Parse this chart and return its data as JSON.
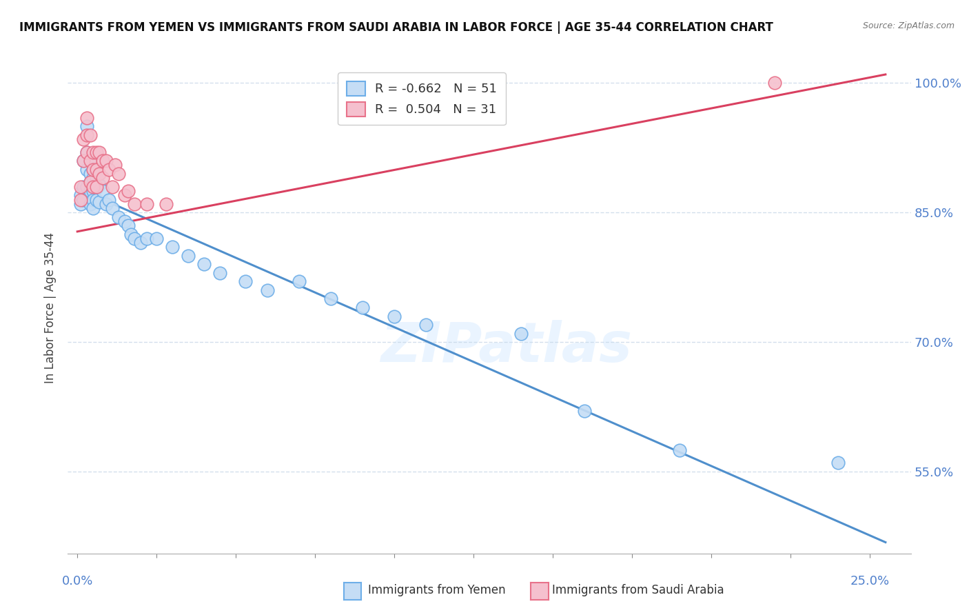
{
  "title": "IMMIGRANTS FROM YEMEN VS IMMIGRANTS FROM SAUDI ARABIA IN LABOR FORCE | AGE 35-44 CORRELATION CHART",
  "source": "Source: ZipAtlas.com",
  "ylabel": "In Labor Force | Age 35-44",
  "watermark": "ZIPatlas",
  "legend_r_yemen": "R = -0.662",
  "legend_n_yemen": "N = 51",
  "legend_r_saudi": "R =  0.504",
  "legend_n_saudi": "N = 31",
  "yemen_face_color": "#c5ddf5",
  "yemen_edge_color": "#6daee8",
  "saudi_face_color": "#f5c0ce",
  "saudi_edge_color": "#e8728a",
  "yemen_line_color": "#4f8fcc",
  "saudi_line_color": "#d94060",
  "ylim_min": 0.455,
  "ylim_max": 1.025,
  "xlim_min": -0.003,
  "xlim_max": 0.263,
  "yticks": [
    0.55,
    0.7,
    0.85,
    1.0
  ],
  "ytick_labels": [
    "55.0%",
    "70.0%",
    "85.0%",
    "100.0%"
  ],
  "yemen_scatter_x": [
    0.001,
    0.001,
    0.002,
    0.002,
    0.002,
    0.003,
    0.003,
    0.003,
    0.003,
    0.004,
    0.004,
    0.004,
    0.004,
    0.004,
    0.005,
    0.005,
    0.005,
    0.005,
    0.005,
    0.006,
    0.006,
    0.006,
    0.007,
    0.007,
    0.008,
    0.009,
    0.01,
    0.011,
    0.013,
    0.015,
    0.016,
    0.017,
    0.018,
    0.02,
    0.022,
    0.025,
    0.03,
    0.035,
    0.04,
    0.045,
    0.053,
    0.06,
    0.07,
    0.08,
    0.09,
    0.1,
    0.11,
    0.14,
    0.16,
    0.19,
    0.24
  ],
  "yemen_scatter_y": [
    0.87,
    0.86,
    0.91,
    0.88,
    0.865,
    0.95,
    0.92,
    0.9,
    0.88,
    0.91,
    0.895,
    0.885,
    0.875,
    0.86,
    0.9,
    0.89,
    0.875,
    0.865,
    0.855,
    0.89,
    0.878,
    0.865,
    0.882,
    0.862,
    0.875,
    0.86,
    0.865,
    0.855,
    0.845,
    0.84,
    0.835,
    0.825,
    0.82,
    0.815,
    0.82,
    0.82,
    0.81,
    0.8,
    0.79,
    0.78,
    0.77,
    0.76,
    0.77,
    0.75,
    0.74,
    0.73,
    0.72,
    0.71,
    0.62,
    0.575,
    0.56
  ],
  "saudi_scatter_x": [
    0.001,
    0.001,
    0.002,
    0.002,
    0.003,
    0.003,
    0.003,
    0.004,
    0.004,
    0.004,
    0.005,
    0.005,
    0.005,
    0.006,
    0.006,
    0.006,
    0.007,
    0.007,
    0.008,
    0.008,
    0.009,
    0.01,
    0.011,
    0.012,
    0.013,
    0.015,
    0.016,
    0.018,
    0.022,
    0.028,
    0.22
  ],
  "saudi_scatter_y": [
    0.88,
    0.865,
    0.935,
    0.91,
    0.96,
    0.94,
    0.92,
    0.94,
    0.91,
    0.885,
    0.92,
    0.9,
    0.88,
    0.92,
    0.9,
    0.88,
    0.92,
    0.895,
    0.91,
    0.89,
    0.91,
    0.9,
    0.88,
    0.905,
    0.895,
    0.87,
    0.875,
    0.86,
    0.86,
    0.86,
    1.0
  ],
  "yemen_line_x": [
    0.0,
    0.255
  ],
  "yemen_line_y": [
    0.878,
    0.468
  ],
  "saudi_line_x": [
    0.0,
    0.255
  ],
  "saudi_line_y": [
    0.828,
    1.01
  ],
  "grid_color": "#c8d8e8",
  "background_color": "#ffffff"
}
